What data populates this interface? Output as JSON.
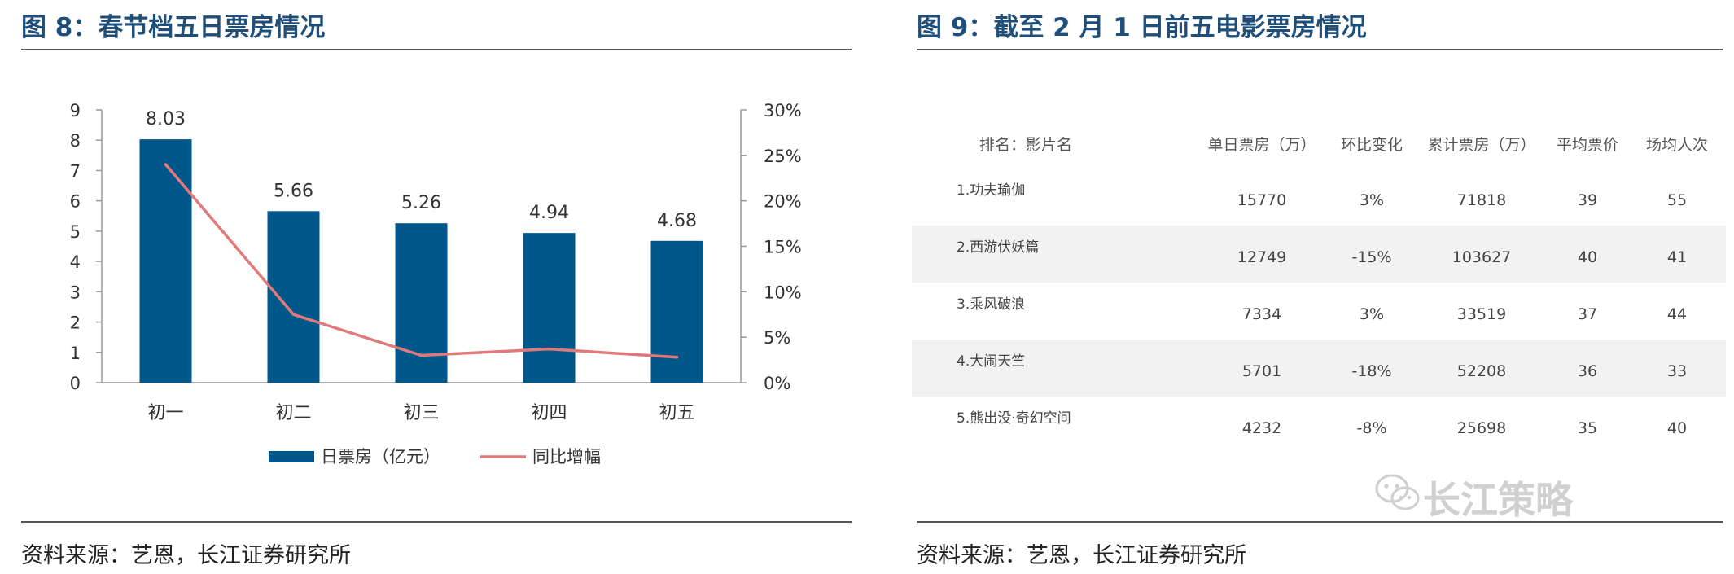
{
  "left_panel": {
    "title": "图 8：春节档五日票房情况",
    "source": "资料来源：艺恩，长江证券研究所"
  },
  "right_panel": {
    "title": "图 9：截至 2 月 1 日前五电影票房情况",
    "source": "资料来源：艺恩，长江证券研究所"
  },
  "chart_data": {
    "type": "bar",
    "categories": [
      "初一",
      "初二",
      "初三",
      "初四",
      "初五"
    ],
    "series": [
      {
        "name": "日票房（亿元）",
        "type": "bar",
        "axis": "left",
        "values": [
          8.03,
          5.66,
          5.26,
          4.94,
          4.68
        ],
        "color": "#00578a"
      },
      {
        "name": "同比增幅",
        "type": "line",
        "axis": "right",
        "values": [
          24,
          7.5,
          3,
          3.7,
          2.8
        ],
        "color": "#e07a7a"
      }
    ],
    "data_labels": [
      "8.03",
      "5.66",
      "5.26",
      "4.94",
      "4.68"
    ],
    "ylim": [
      0,
      9
    ],
    "yticks": [
      "0",
      "1",
      "2",
      "3",
      "4",
      "5",
      "6",
      "7",
      "8",
      "9"
    ],
    "y2lim": [
      0,
      30
    ],
    "y2ticks": [
      "0%",
      "5%",
      "10%",
      "15%",
      "20%",
      "25%",
      "30%"
    ],
    "grid": false,
    "legend": "bottom"
  },
  "table": {
    "headers": [
      "排名：影片名",
      "单日票房（万）",
      "环比变化",
      "累计票房（万）",
      "平均票价",
      "场均人次"
    ],
    "rows": [
      {
        "name": "1.功夫瑜伽",
        "daily": "15770",
        "change": "3%",
        "total": "71818",
        "price": "39",
        "avg": "55"
      },
      {
        "name": "2.西游伏妖篇",
        "daily": "12749",
        "change": "-15%",
        "total": "103627",
        "price": "40",
        "avg": "41"
      },
      {
        "name": "3.乘风破浪",
        "daily": "7334",
        "change": "3%",
        "total": "33519",
        "price": "37",
        "avg": "44"
      },
      {
        "name": "4.大闹天竺",
        "daily": "5701",
        "change": "-18%",
        "total": "52208",
        "price": "36",
        "avg": "33"
      },
      {
        "name": "5.熊出没·奇幻空间",
        "daily": "4232",
        "change": "-8%",
        "total": "25698",
        "price": "35",
        "avg": "40"
      }
    ]
  },
  "watermark": {
    "text": "长江策略",
    "icon": "wechat-icon"
  }
}
